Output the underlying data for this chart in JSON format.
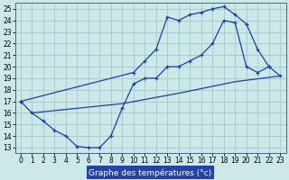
{
  "xlabel": "Graphe des températures (°c)",
  "bg_color": "#cce8e8",
  "grid_color": "#aacccc",
  "line_color": "#1a3faa",
  "xlim": [
    -0.5,
    23.5
  ],
  "ylim": [
    12.5,
    25.5
  ],
  "xticks": [
    0,
    1,
    2,
    3,
    4,
    5,
    6,
    7,
    8,
    9,
    10,
    11,
    12,
    13,
    14,
    15,
    16,
    17,
    18,
    19,
    20,
    21,
    22,
    23
  ],
  "yticks": [
    13,
    14,
    15,
    16,
    17,
    18,
    19,
    20,
    21,
    22,
    23,
    24,
    25
  ],
  "curve1_x": [
    0,
    10,
    11,
    12,
    13,
    14,
    15,
    16,
    17,
    18,
    19,
    20,
    21,
    22,
    23
  ],
  "curve1_y": [
    17.0,
    19.5,
    20.5,
    21.5,
    24.3,
    24.0,
    24.5,
    24.7,
    25.0,
    25.2,
    24.5,
    23.7,
    21.5,
    20.0,
    19.2
  ],
  "curve2_x": [
    1,
    3,
    9,
    14,
    19,
    23
  ],
  "curve2_y": [
    16.0,
    16.2,
    16.8,
    17.7,
    18.7,
    19.2
  ],
  "curve3_x": [
    0,
    1,
    2,
    3,
    4,
    5,
    6,
    7,
    8,
    9,
    10,
    11,
    12,
    13,
    14,
    15,
    16,
    17,
    18,
    19,
    20,
    21,
    22
  ],
  "curve3_y": [
    17.0,
    16.0,
    15.3,
    14.5,
    14.0,
    13.1,
    13.0,
    13.0,
    14.0,
    16.4,
    18.5,
    19.0,
    19.0,
    20.0,
    20.0,
    20.5,
    21.0,
    22.0,
    24.0,
    23.8,
    20.0,
    19.5,
    20.0
  ],
  "xlabel_bg": "#2244aa",
  "xlabel_color": "#ffffff",
  "xlabel_fontsize": 6.5,
  "tick_fontsize": 5.5
}
